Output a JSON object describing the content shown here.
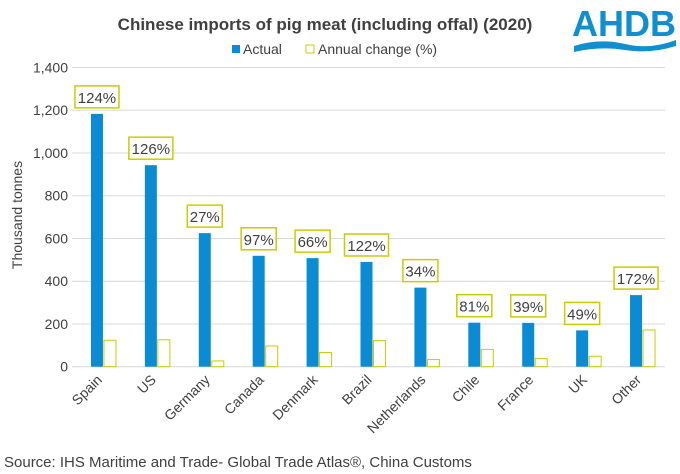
{
  "brand": {
    "logo_text": "AHDB",
    "color": "#0f8fd0"
  },
  "source": "Source: IHS Maritime and Trade- Global Trade Atlas®, China Customs",
  "chart_data": {
    "type": "bar",
    "title": "Chinese imports of pig meat (including offal) (2020)",
    "xlabel": "",
    "ylabel": "Thousand tonnes",
    "ylim": [
      0,
      1400
    ],
    "yticks": [
      0,
      200,
      400,
      600,
      800,
      1000,
      1200,
      1400
    ],
    "ytick_labels": [
      "0",
      "200",
      "400",
      "600",
      "800",
      "1,000",
      "1,200",
      "1,400"
    ],
    "grid": true,
    "legend_position": "top-center",
    "categories": [
      "Spain",
      "US",
      "Germany",
      "Canada",
      "Denmark",
      "Brazil",
      "Netherlands",
      "Chile",
      "France",
      "UK",
      "Other"
    ],
    "series": [
      {
        "name": "Actual",
        "color": "#0a8bd3",
        "values": [
          1183,
          943,
          625,
          519,
          508,
          490,
          370,
          206,
          205,
          170,
          335
        ]
      },
      {
        "name": "Annual change (%)",
        "color": "#c9cc00",
        "values": [
          124,
          126,
          27,
          97,
          66,
          122,
          34,
          81,
          39,
          49,
          172
        ],
        "data_labels": [
          "124%",
          "126%",
          "27%",
          "97%",
          "66%",
          "122%",
          "34%",
          "81%",
          "39%",
          "49%",
          "172%"
        ]
      }
    ]
  }
}
